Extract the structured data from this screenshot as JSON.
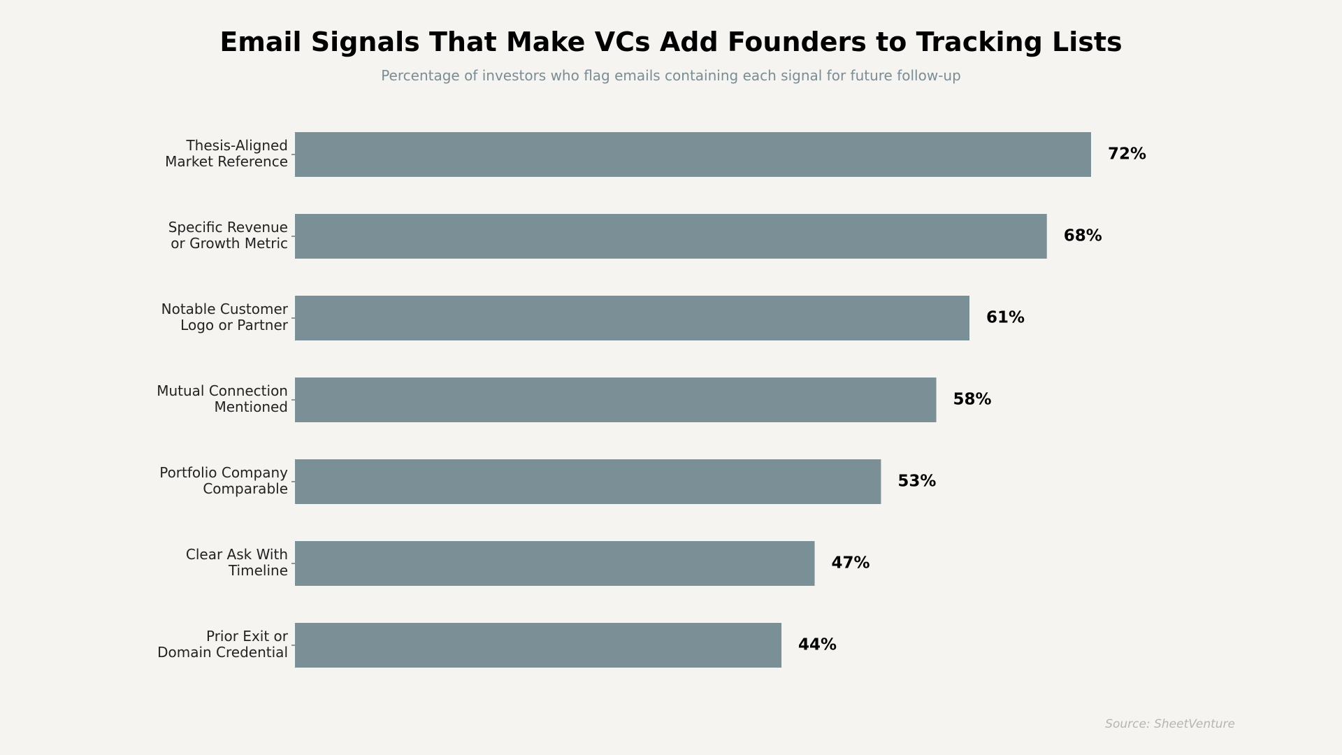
{
  "chart_data": {
    "type": "bar",
    "orientation": "horizontal",
    "title": "Email Signals That Make VCs Add Founders to Tracking Lists",
    "subtitle": "Percentage of investors who flag emails containing each signal for future follow-up",
    "categories": [
      [
        "Thesis-Aligned",
        "Market Reference"
      ],
      [
        "Specific Revenue",
        "or Growth Metric"
      ],
      [
        "Notable Customer",
        "Logo or Partner"
      ],
      [
        "Mutual Connection",
        "Mentioned"
      ],
      [
        "Portfolio Company",
        "Comparable"
      ],
      [
        "Clear Ask With",
        "Timeline"
      ],
      [
        "Prior Exit or",
        "Domain Credential"
      ]
    ],
    "values": [
      72,
      68,
      61,
      58,
      53,
      47,
      44
    ],
    "value_labels": [
      "72%",
      "68%",
      "61%",
      "58%",
      "53%",
      "47%",
      "44%"
    ],
    "xlim": [
      0,
      72
    ],
    "grid": false,
    "bar_color": "#7b8f96",
    "source": "Source: SheetVenture"
  }
}
